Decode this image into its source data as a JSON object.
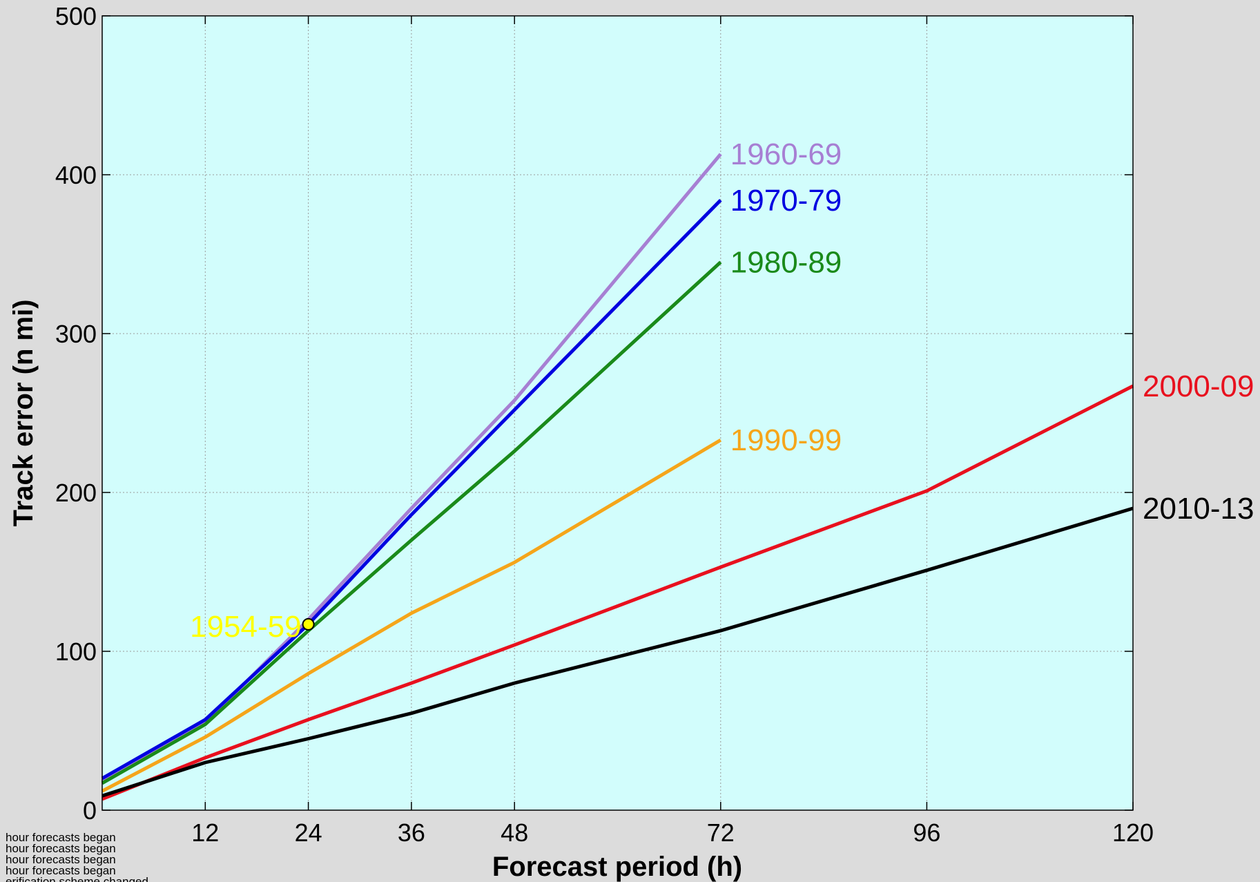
{
  "chart_data": {
    "type": "line",
    "title": "",
    "xlabel": "Forecast period (h)",
    "ylabel": "Track error (n mi)",
    "xlim": [
      0,
      120
    ],
    "ylim": [
      0,
      500
    ],
    "xticks": [
      12,
      24,
      36,
      48,
      72,
      96,
      120
    ],
    "yticks": [
      0,
      100,
      200,
      300,
      400,
      500
    ],
    "grid": true,
    "background": "#d2fdfc",
    "series": [
      {
        "name": "1960-69",
        "color": "#a77fd3",
        "x": [
          0,
          12,
          24,
          36,
          48,
          72
        ],
        "y": [
          18,
          55,
          120,
          190,
          258,
          413
        ]
      },
      {
        "name": "1970-79",
        "color": "#0000e0",
        "x": [
          0,
          12,
          24,
          36,
          48,
          72
        ],
        "y": [
          20,
          57,
          117,
          186,
          252,
          384
        ]
      },
      {
        "name": "1980-89",
        "color": "#1a8a1a",
        "x": [
          0,
          12,
          24,
          36,
          48,
          72
        ],
        "y": [
          17,
          54,
          113,
          170,
          226,
          345
        ]
      },
      {
        "name": "1990-99",
        "color": "#f5a51a",
        "x": [
          0,
          12,
          24,
          36,
          48,
          72
        ],
        "y": [
          12,
          46,
          86,
          124,
          156,
          233
        ]
      },
      {
        "name": "2000-09",
        "color": "#e8101e",
        "x": [
          0,
          12,
          24,
          36,
          48,
          72,
          96,
          120
        ],
        "y": [
          7,
          33,
          57,
          80,
          104,
          153,
          201,
          267
        ]
      },
      {
        "name": "2010-13",
        "color": "#000000",
        "x": [
          0,
          12,
          24,
          36,
          48,
          72,
          96,
          120
        ],
        "y": [
          9,
          30,
          45,
          61,
          80,
          113,
          151,
          190
        ]
      }
    ],
    "points": [
      {
        "name": "1954-59",
        "color": "#ffff00",
        "x": 24,
        "y": 117
      }
    ],
    "footnotes": [
      "hour forecasts began",
      "hour forecasts began",
      "hour forecasts began",
      "hour forecasts began",
      "erification scheme changed"
    ]
  }
}
